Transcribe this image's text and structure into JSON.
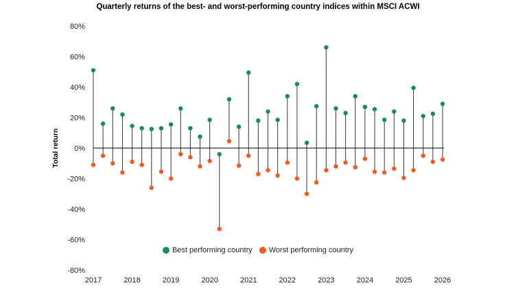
{
  "colors": {
    "best": "#1a8a5a",
    "worst": "#f25a1f",
    "stem": "#333333",
    "zero": "#000000"
  },
  "chart_data": {
    "type": "scatter",
    "title": "Quarterly returns of the best- and worst-performing country indices within MSCI ACWI",
    "ylabel": "Total return",
    "xlabel": "",
    "ylim": [
      -80,
      80
    ],
    "yticks": [
      80,
      60,
      40,
      20,
      0,
      -20,
      -40,
      -60,
      -80
    ],
    "ytick_labels": [
      "80%",
      "60%",
      "40%",
      "20%",
      "0%",
      "-20%",
      "-40%",
      "-60%",
      "-80%"
    ],
    "xticks": [
      2017,
      2018,
      2019,
      2020,
      2021,
      2022,
      2023,
      2024,
      2025,
      2026
    ],
    "xtick_labels": [
      "2017",
      "2018",
      "2019",
      "2020",
      "2021",
      "2022",
      "2023",
      "2024",
      "2025",
      "2026"
    ],
    "xlim": [
      2017,
      2026
    ],
    "legend": {
      "placement": "bottom"
    },
    "x": [
      2017.0,
      2017.25,
      2017.5,
      2017.75,
      2018.0,
      2018.25,
      2018.5,
      2018.75,
      2019.0,
      2019.25,
      2019.5,
      2019.75,
      2020.0,
      2020.25,
      2020.5,
      2020.75,
      2021.0,
      2021.25,
      2021.5,
      2021.75,
      2022.0,
      2022.25,
      2022.5,
      2022.75,
      2023.0,
      2023.25,
      2023.5,
      2023.75,
      2024.0,
      2024.25,
      2024.5,
      2024.75,
      2025.0,
      2025.25,
      2025.5,
      2025.75,
      2026.0
    ],
    "series": [
      {
        "name": "Best performing country",
        "values": [
          51,
          16,
          26,
          22,
          14.5,
          13,
          12.5,
          13,
          15.5,
          26,
          13,
          7.5,
          18.5,
          -4,
          32,
          14,
          49.5,
          18,
          24,
          18.5,
          34,
          42,
          3.5,
          27.5,
          66,
          26,
          23,
          34,
          27,
          25.5,
          18.5,
          24,
          18,
          39.5,
          21,
          22.5,
          29
        ]
      },
      {
        "name": "Worst performing country",
        "values": [
          -11,
          -5,
          -10,
          -16,
          -9,
          -11,
          -26,
          -15.5,
          -20,
          -4,
          -6,
          -12,
          -8.5,
          -53,
          4.5,
          -11.5,
          -5,
          -17,
          -14.5,
          -18,
          -9.5,
          -20,
          -30,
          -22.5,
          -14.5,
          -12,
          -9.5,
          -12.5,
          -7,
          -15.5,
          -16,
          -13.5,
          -19.5,
          -14.5,
          -5,
          -9,
          -7.5
        ]
      }
    ]
  }
}
